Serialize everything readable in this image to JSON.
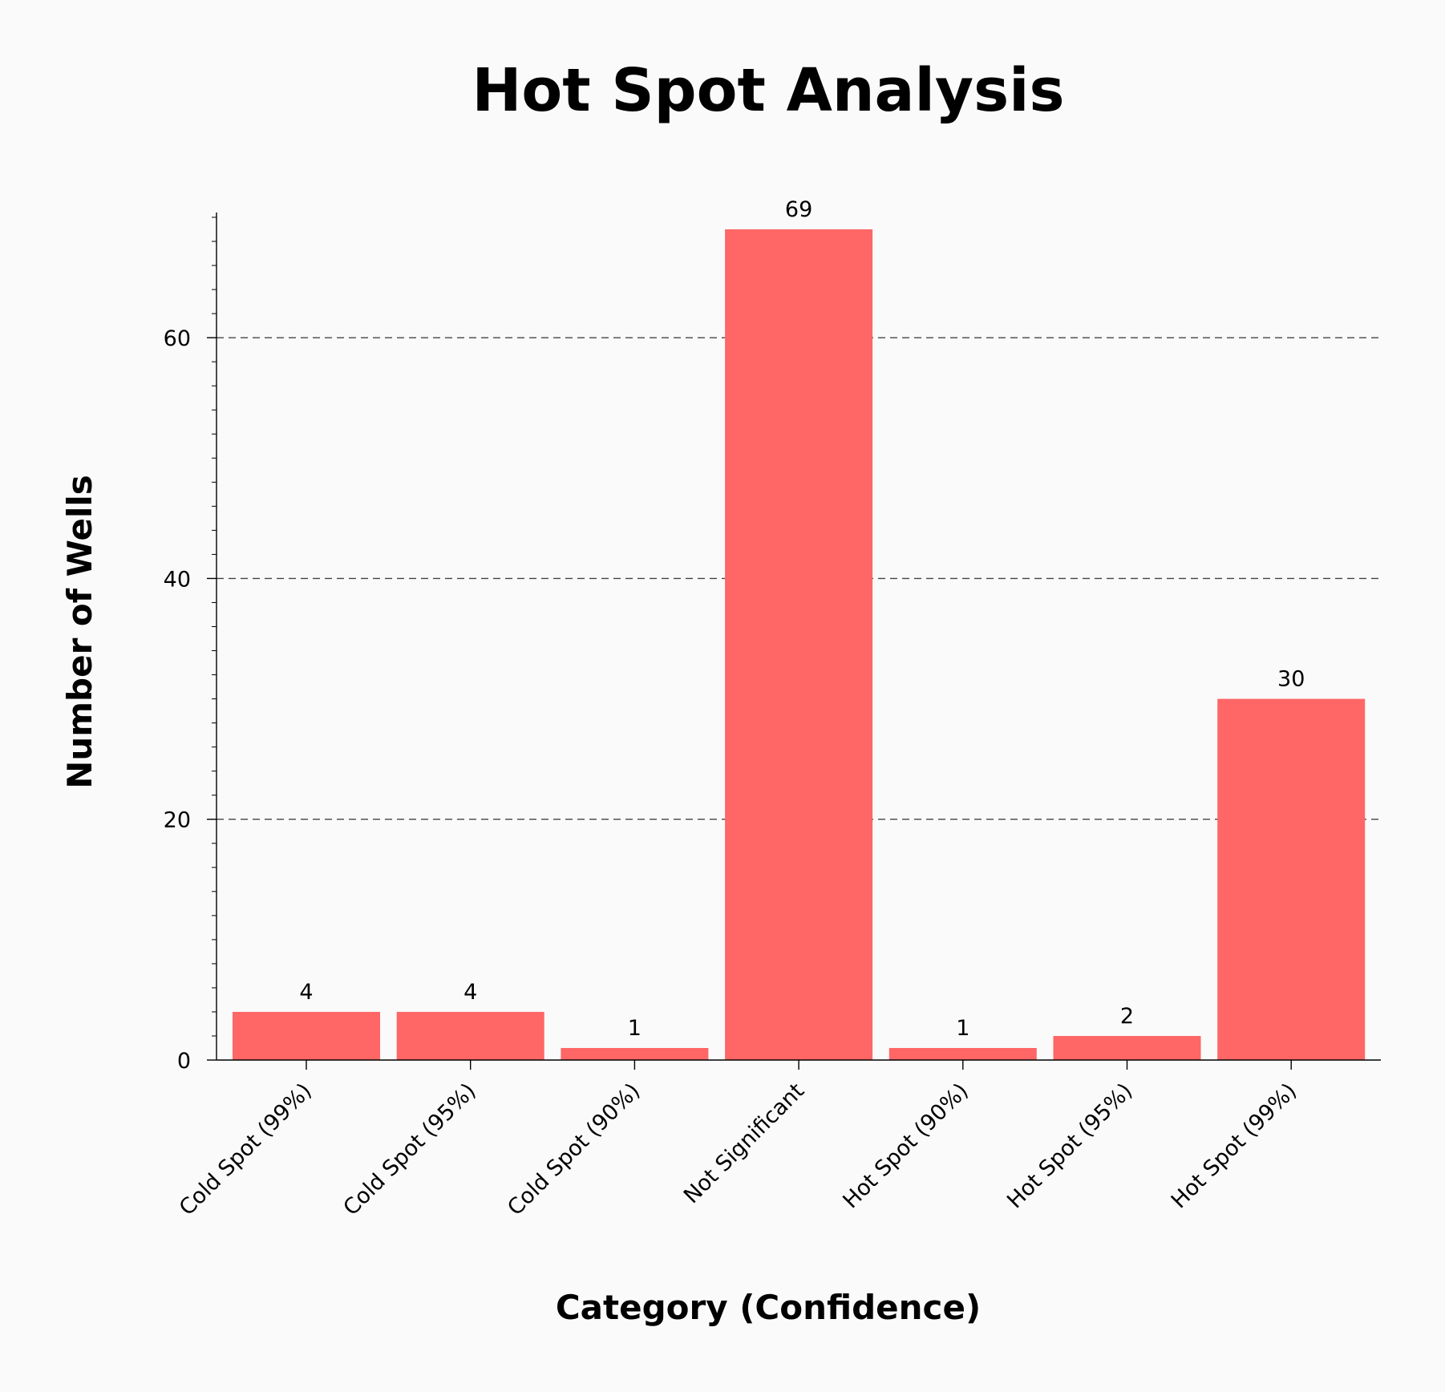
{
  "chart_data": {
    "type": "bar",
    "title": "Hot Spot Analysis",
    "xlabel": "Category (Confidence)",
    "ylabel": "Number of Wells",
    "categories": [
      "Cold Spot (99%)",
      "Cold Spot (95%)",
      "Cold Spot (90%)",
      "Not Significant",
      "Hot Spot (90%)",
      "Hot Spot (95%)",
      "Hot Spot (99%)"
    ],
    "values": [
      4,
      4,
      1,
      69,
      1,
      2,
      30
    ],
    "data_labels": [
      "4",
      "4",
      "1",
      "69",
      "1",
      "2",
      "30"
    ],
    "ylim": [
      0,
      70.4
    ],
    "yticks": [
      0,
      20,
      40,
      60
    ],
    "ytick_labels": [
      "0",
      "20",
      "40",
      "60"
    ],
    "grid": "horizontal dashed at major y ticks",
    "legend": "none",
    "colors": {
      "bar": "#ff6666",
      "background": "#fafafa",
      "axis": "#000000",
      "grid": "#444444"
    }
  }
}
